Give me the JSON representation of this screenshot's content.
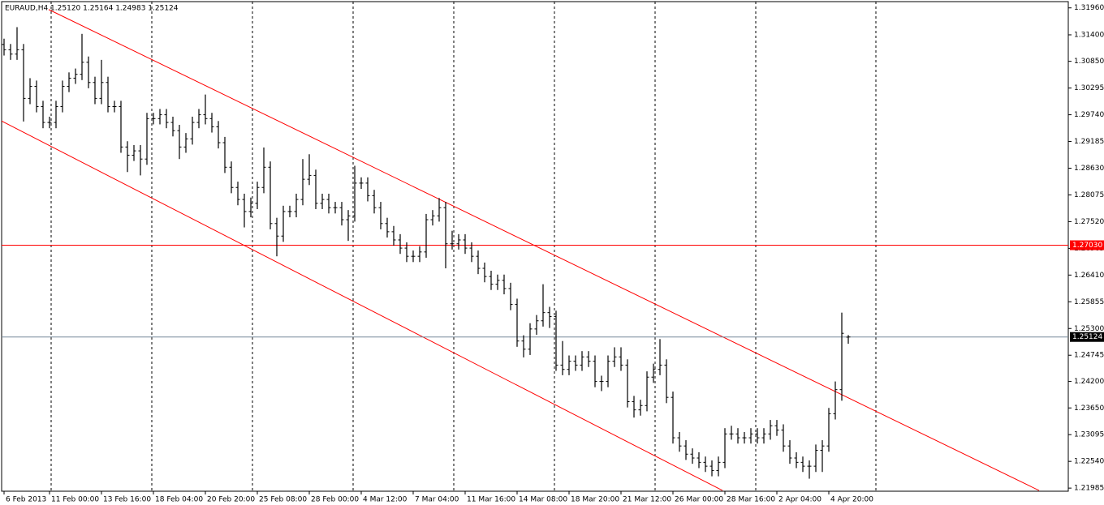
{
  "chart_data": {
    "type": "ohlc",
    "title": "EURAUD,H4  1.25120 1.25164 1.24983 1.25124",
    "color": "#000000",
    "open": [
      1.312,
      1.3109,
      1.31,
      1.3109,
      1.3008,
      1.3033,
      1.2991,
      1.2958,
      1.2958,
      1.2991,
      1.3033,
      1.305,
      1.3058,
      1.3083,
      1.3041,
      1.3008,
      1.3041,
      1.2991,
      1.2991,
      1.2907,
      1.289,
      1.2899,
      1.2882,
      1.2966,
      1.2966,
      1.2974,
      1.2958,
      1.2941,
      1.2907,
      1.2924,
      1.2958,
      1.2974,
      1.2966,
      1.2949,
      1.2916,
      1.2865,
      1.2823,
      1.2798,
      1.2773,
      1.279,
      1.2823,
      1.2865,
      1.2748,
      1.2722,
      1.2773,
      1.2773,
      1.2798,
      1.284,
      1.2848,
      1.279,
      1.2798,
      1.2781,
      1.2781,
      1.2756,
      1.2764,
      1.2832,
      1.2832,
      1.2806,
      1.2781,
      1.2748,
      1.2731,
      1.2714,
      1.2697,
      1.268,
      1.268,
      1.2689,
      1.2756,
      1.2764,
      1.2781,
      1.2706,
      1.2706,
      1.2714,
      1.2697,
      1.268,
      1.2655,
      1.2638,
      1.2622,
      1.263,
      1.2613,
      1.258,
      1.2504,
      1.2487,
      1.2529,
      1.2546,
      1.2563,
      1.2555,
      1.2454,
      1.2445,
      1.2462,
      1.2454,
      1.2471,
      1.2462,
      1.242,
      1.242,
      1.2462,
      1.2471,
      1.2454,
      1.2378,
      1.2361,
      1.237,
      1.2429,
      1.2445,
      1.2454,
      1.2387,
      1.2303,
      1.2286,
      1.2269,
      1.2261,
      1.2252,
      1.2244,
      1.2235,
      1.2252,
      1.2311,
      1.2311,
      1.2303,
      1.2303,
      1.2311,
      1.2303,
      1.2311,
      1.2328,
      1.2319,
      1.2286,
      1.2261,
      1.2252,
      1.2244,
      1.2244,
      1.2277,
      1.2286,
      1.2353,
      1.2403,
      1.2512
    ],
    "high": [
      1.3132,
      1.3121,
      1.3156,
      1.3121,
      1.305,
      1.3045,
      1.3003,
      1.297,
      1.3003,
      1.3045,
      1.3062,
      1.307,
      1.3142,
      1.3095,
      1.3053,
      1.3088,
      1.3053,
      1.3003,
      1.3003,
      1.2919,
      1.2911,
      1.2911,
      1.2978,
      1.2978,
      1.2986,
      1.2986,
      1.297,
      1.2953,
      1.2936,
      1.297,
      1.2986,
      1.3016,
      1.2978,
      1.2961,
      1.2928,
      1.2877,
      1.2835,
      1.281,
      1.2802,
      1.2835,
      1.2906,
      1.2877,
      1.276,
      1.2785,
      1.2785,
      1.281,
      1.2882,
      1.2892,
      1.286,
      1.281,
      1.281,
      1.2793,
      1.2793,
      1.2776,
      1.2868,
      1.2844,
      1.2844,
      1.2818,
      1.2793,
      1.276,
      1.2743,
      1.2726,
      1.2709,
      1.2692,
      1.2701,
      1.2768,
      1.2776,
      1.2801,
      1.2793,
      1.2733,
      1.2726,
      1.2726,
      1.2709,
      1.2692,
      1.2667,
      1.265,
      1.2642,
      1.2642,
      1.2625,
      1.2592,
      1.2516,
      1.2541,
      1.2558,
      1.2622,
      1.2575,
      1.2567,
      1.2504,
      1.2474,
      1.2474,
      1.2483,
      1.2483,
      1.2474,
      1.2432,
      1.2474,
      1.2491,
      1.2491,
      1.2466,
      1.239,
      1.2382,
      1.2441,
      1.2457,
      1.2508,
      1.2466,
      1.2399,
      1.2315,
      1.2298,
      1.2281,
      1.2273,
      1.2264,
      1.2256,
      1.2264,
      1.2323,
      1.2328,
      1.2323,
      1.2315,
      1.2323,
      1.2323,
      1.2323,
      1.234,
      1.234,
      1.2331,
      1.2298,
      1.2273,
      1.2264,
      1.2256,
      1.2289,
      1.2298,
      1.2365,
      1.242,
      1.2563,
      1.25164
    ],
    "low": [
      1.3097,
      1.3088,
      1.3088,
      1.296,
      1.2996,
      1.2979,
      1.2946,
      1.2946,
      1.2946,
      1.2979,
      1.3021,
      1.3038,
      1.3046,
      1.3029,
      1.2996,
      1.2996,
      1.2979,
      1.2979,
      1.2895,
      1.2855,
      1.2878,
      1.2848,
      1.287,
      1.2954,
      1.2954,
      1.2946,
      1.2929,
      1.2882,
      1.2895,
      1.2912,
      1.2946,
      1.2954,
      1.2937,
      1.2904,
      1.2853,
      1.2811,
      1.2786,
      1.274,
      1.2761,
      1.2778,
      1.2811,
      1.2736,
      1.268,
      1.271,
      1.2761,
      1.2761,
      1.2786,
      1.2828,
      1.2778,
      1.2778,
      1.2769,
      1.2769,
      1.2744,
      1.2712,
      1.2752,
      1.282,
      1.2794,
      1.2769,
      1.2736,
      1.2719,
      1.2702,
      1.2685,
      1.2668,
      1.2668,
      1.2668,
      1.2677,
      1.2744,
      1.2752,
      1.2655,
      1.2694,
      1.2694,
      1.2685,
      1.2668,
      1.2643,
      1.2626,
      1.261,
      1.261,
      1.2601,
      1.2568,
      1.2492,
      1.247,
      1.2475,
      1.2517,
      1.2534,
      1.2531,
      1.2442,
      1.2433,
      1.2433,
      1.2442,
      1.2442,
      1.245,
      1.2408,
      1.24,
      1.2408,
      1.245,
      1.2442,
      1.2366,
      1.2345,
      1.2349,
      1.2358,
      1.2417,
      1.2433,
      1.2375,
      1.2291,
      1.2274,
      1.2257,
      1.2249,
      1.224,
      1.2232,
      1.2223,
      1.2223,
      1.224,
      1.2299,
      1.2291,
      1.2291,
      1.2291,
      1.2291,
      1.2291,
      1.2299,
      1.2307,
      1.2274,
      1.2249,
      1.224,
      1.2232,
      1.2218,
      1.2232,
      1.2232,
      1.2274,
      1.2341,
      1.238,
      1.24983
    ],
    "close": [
      1.3109,
      1.31,
      1.3109,
      1.3008,
      1.3033,
      1.2991,
      1.2958,
      1.2958,
      1.2991,
      1.3033,
      1.305,
      1.3058,
      1.3083,
      1.3041,
      1.3008,
      1.3041,
      1.2991,
      1.2991,
      1.2907,
      1.289,
      1.2899,
      1.2882,
      1.2966,
      1.2966,
      1.2974,
      1.2958,
      1.2941,
      1.2907,
      1.2924,
      1.2958,
      1.2974,
      1.2966,
      1.2949,
      1.2916,
      1.2865,
      1.2823,
      1.2798,
      1.2773,
      1.279,
      1.2823,
      1.2865,
      1.2748,
      1.2722,
      1.2773,
      1.2773,
      1.2798,
      1.284,
      1.2848,
      1.279,
      1.2798,
      1.2781,
      1.2781,
      1.2756,
      1.2764,
      1.2832,
      1.2832,
      1.2806,
      1.2781,
      1.2748,
      1.2731,
      1.2714,
      1.2697,
      1.268,
      1.268,
      1.2689,
      1.2756,
      1.2764,
      1.2781,
      1.2706,
      1.2706,
      1.2714,
      1.2697,
      1.268,
      1.2655,
      1.2638,
      1.2622,
      1.263,
      1.2613,
      1.258,
      1.2504,
      1.2487,
      1.2529,
      1.2546,
      1.2563,
      1.2555,
      1.2454,
      1.2445,
      1.2462,
      1.2454,
      1.2471,
      1.2462,
      1.242,
      1.242,
      1.2462,
      1.2471,
      1.2454,
      1.2378,
      1.2361,
      1.237,
      1.2429,
      1.2445,
      1.2454,
      1.2387,
      1.2303,
      1.2286,
      1.2269,
      1.2261,
      1.2252,
      1.2244,
      1.2235,
      1.2252,
      1.2311,
      1.2311,
      1.2303,
      1.2303,
      1.2311,
      1.2303,
      1.2311,
      1.2328,
      1.2319,
      1.2286,
      1.2261,
      1.2252,
      1.2244,
      1.2244,
      1.2277,
      1.2286,
      1.2353,
      1.2403,
      1.252,
      1.25124
    ],
    "xlim": [
      -0.375,
      163.875
    ],
    "xticks": [
      {
        "value": 0,
        "label": "6 Feb 2013"
      },
      {
        "value": 7,
        "label": "11 Feb 00:00"
      },
      {
        "value": 15,
        "label": "13 Feb 16:00"
      },
      {
        "value": 23,
        "label": "18 Feb 04:00"
      },
      {
        "value": 31,
        "label": "20 Feb 20:00"
      },
      {
        "value": 39,
        "label": "25 Feb 08:00"
      },
      {
        "value": 47,
        "label": "28 Feb 00:00"
      },
      {
        "value": 55,
        "label": "4 Mar 12:00"
      },
      {
        "value": 63,
        "label": "7 Mar 04:00"
      },
      {
        "value": 71,
        "label": "11 Mar 16:00"
      },
      {
        "value": 79,
        "label": "14 Mar 08:00"
      },
      {
        "value": 87,
        "label": "18 Mar 20:00"
      },
      {
        "value": 95,
        "label": "21 Mar 12:00"
      },
      {
        "value": 103,
        "label": "26 Mar 00:00"
      },
      {
        "value": 111,
        "label": "28 Mar 16:00"
      },
      {
        "value": 119,
        "label": "2 Apr 04:00"
      },
      {
        "value": 127,
        "label": "4 Apr 20:00"
      }
    ],
    "period_separators": [
      7.25,
      22.75,
      38.25,
      53.75,
      69.25,
      84.75,
      100.25,
      115.75,
      134.25
    ],
    "ylim": [
      1.2192,
      1.3209
    ],
    "yticks": [
      {
        "value": 1.3196,
        "label": "1.31960"
      },
      {
        "value": 1.314,
        "label": "1.31400"
      },
      {
        "value": 1.3085,
        "label": "1.30850"
      },
      {
        "value": 1.30295,
        "label": "1.30295"
      },
      {
        "value": 1.2974,
        "label": "1.29740"
      },
      {
        "value": 1.29185,
        "label": "1.29185"
      },
      {
        "value": 1.2863,
        "label": "1.28630"
      },
      {
        "value": 1.28075,
        "label": "1.28075"
      },
      {
        "value": 1.2752,
        "label": "1.27520"
      },
      {
        "value": 1.26965,
        "label": "1.26965"
      },
      {
        "value": 1.2641,
        "label": "1.26410"
      },
      {
        "value": 1.25855,
        "label": "1.25855"
      },
      {
        "value": 1.253,
        "label": "1.25300"
      },
      {
        "value": 1.24745,
        "label": "1.24745"
      },
      {
        "value": 1.242,
        "label": "1.24200"
      },
      {
        "value": 1.2365,
        "label": "1.23650"
      },
      {
        "value": 1.23095,
        "label": "1.23095"
      },
      {
        "value": 1.2254,
        "label": "1.22540"
      },
      {
        "value": 1.21985,
        "label": "1.21985"
      }
    ],
    "hlines": [
      {
        "value": 1.2703,
        "label": "1.27030",
        "color": "#ff0000"
      },
      {
        "value": 1.25124,
        "label": "1.25124",
        "color": "#778899"
      }
    ],
    "trendlines": [
      {
        "color": "#ff0000",
        "x": [
          6.875,
          159.375
        ],
        "y": [
          1.31926,
          1.21935
        ]
      },
      {
        "color": "#ff0000",
        "x": [
          -0.625,
          110.625
        ],
        "y": [
          1.29626,
          1.21935
        ]
      }
    ]
  }
}
